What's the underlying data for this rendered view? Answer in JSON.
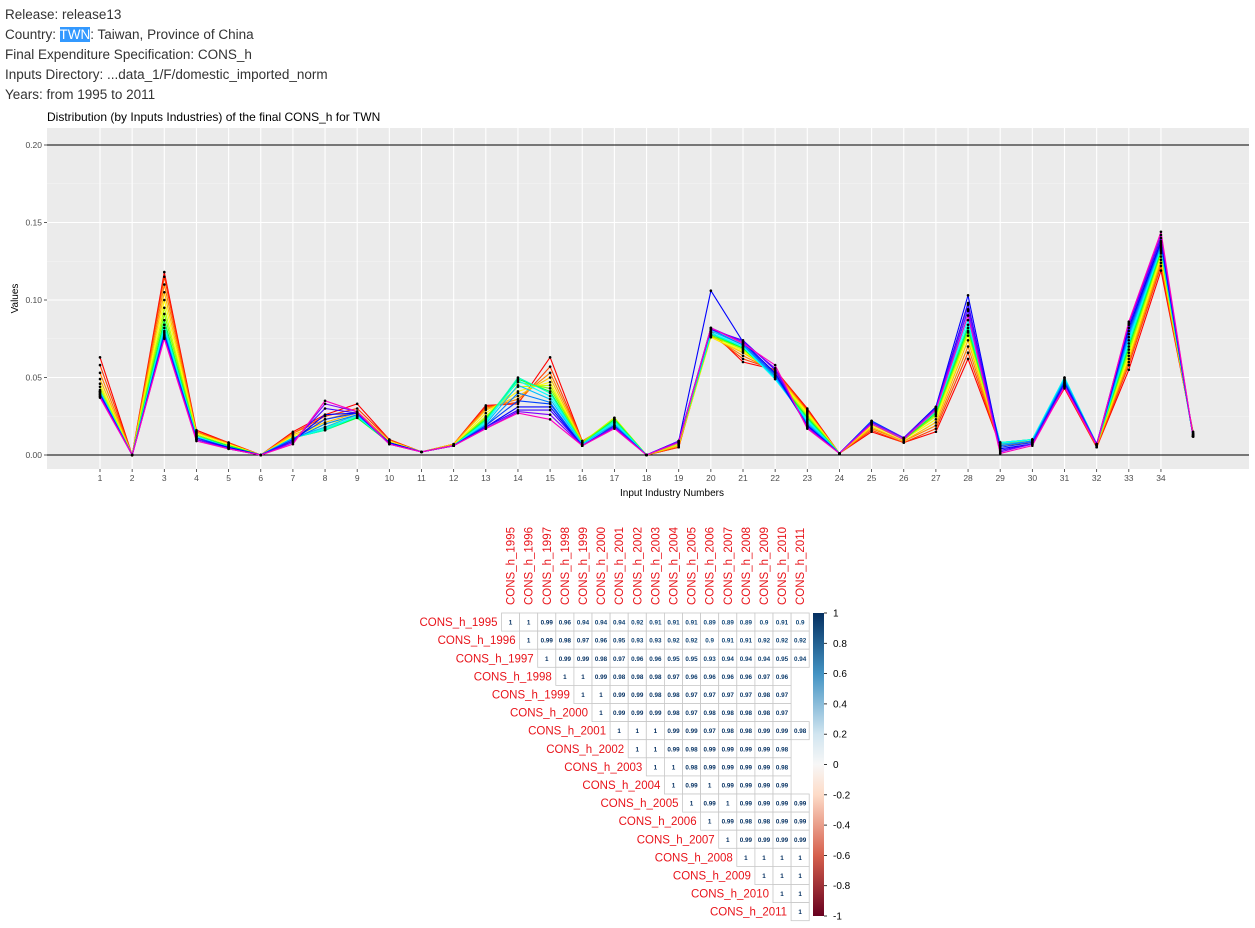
{
  "header": {
    "release_label": "Release: ",
    "release": "release13",
    "country_label": "Country: ",
    "country_code": "TWN",
    "country_name": ": Taiwan, Province of China",
    "spec_label": "Final Expenditure Specification: ",
    "spec": "CONS_h",
    "inputs_label": "Inputs Directory: ",
    "inputs_dir": "...data_1/F/domestic_imported_norm",
    "years_label": "Years: ",
    "years": "from 1995 to 2011"
  },
  "chart_data": [
    {
      "type": "line",
      "title": "Distribution (by Inputs Industries) of the final CONS_h for  TWN",
      "xlabel": "Input Industry Numbers",
      "ylabel": "Values",
      "ylim": [
        0,
        0.2
      ],
      "yticks": [
        "0.00",
        "0.05",
        "0.10",
        "0.15",
        "0.20"
      ],
      "xticks": [
        1,
        2,
        3,
        4,
        5,
        6,
        7,
        8,
        9,
        10,
        11,
        12,
        13,
        14,
        15,
        16,
        17,
        18,
        19,
        20,
        21,
        22,
        23,
        24,
        25,
        26,
        27,
        28,
        29,
        30,
        31,
        32,
        33,
        34
      ],
      "x": [
        1,
        2,
        3,
        4,
        5,
        6,
        7,
        8,
        9,
        10,
        11,
        12,
        13,
        14,
        15,
        16,
        17,
        18,
        19,
        20,
        21,
        22,
        23,
        24,
        25,
        26,
        27,
        28,
        29,
        30,
        31,
        32,
        33,
        34,
        35
      ],
      "grid": true,
      "series": [
        {
          "values": [
            0.063,
            0.0,
            0.118,
            0.016,
            0.008,
            0.0,
            0.015,
            0.026,
            0.033,
            0.01,
            0.002,
            0.007,
            0.032,
            0.033,
            0.063,
            0.009,
            0.019,
            0.0,
            0.005,
            0.08,
            0.06,
            0.055,
            0.03,
            0.001,
            0.015,
            0.008,
            0.015,
            0.062,
            0.006,
            0.008,
            0.043,
            0.005,
            0.055,
            0.119,
            0.015
          ],
          "color": "#ff0000"
        },
        {
          "values": [
            0.058,
            0.0,
            0.115,
            0.015,
            0.008,
            0.0,
            0.014,
            0.025,
            0.03,
            0.01,
            0.002,
            0.007,
            0.031,
            0.034,
            0.057,
            0.009,
            0.021,
            0.0,
            0.005,
            0.078,
            0.062,
            0.055,
            0.029,
            0.001,
            0.016,
            0.008,
            0.017,
            0.066,
            0.006,
            0.008,
            0.044,
            0.005,
            0.058,
            0.122,
            0.014
          ],
          "color": "#ff4000"
        },
        {
          "values": [
            0.053,
            0.0,
            0.11,
            0.015,
            0.007,
            0.0,
            0.014,
            0.023,
            0.028,
            0.009,
            0.002,
            0.007,
            0.03,
            0.036,
            0.053,
            0.009,
            0.022,
            0.0,
            0.006,
            0.077,
            0.064,
            0.054,
            0.028,
            0.001,
            0.017,
            0.009,
            0.019,
            0.07,
            0.006,
            0.009,
            0.044,
            0.006,
            0.06,
            0.124,
            0.014
          ],
          "color": "#ff8000"
        },
        {
          "values": [
            0.049,
            0.0,
            0.105,
            0.014,
            0.007,
            0.0,
            0.013,
            0.021,
            0.027,
            0.009,
            0.002,
            0.007,
            0.029,
            0.038,
            0.05,
            0.008,
            0.023,
            0.0,
            0.006,
            0.076,
            0.066,
            0.053,
            0.028,
            0.001,
            0.018,
            0.009,
            0.021,
            0.074,
            0.006,
            0.009,
            0.045,
            0.006,
            0.062,
            0.126,
            0.013
          ],
          "color": "#ffbf00"
        },
        {
          "values": [
            0.046,
            0.0,
            0.1,
            0.014,
            0.007,
            0.0,
            0.012,
            0.02,
            0.025,
            0.009,
            0.002,
            0.006,
            0.027,
            0.041,
            0.047,
            0.008,
            0.024,
            0.0,
            0.007,
            0.076,
            0.067,
            0.052,
            0.027,
            0.001,
            0.019,
            0.01,
            0.023,
            0.077,
            0.007,
            0.01,
            0.046,
            0.007,
            0.064,
            0.128,
            0.013
          ],
          "color": "#ffff00"
        },
        {
          "values": [
            0.044,
            0.0,
            0.095,
            0.013,
            0.006,
            0.0,
            0.011,
            0.018,
            0.024,
            0.008,
            0.002,
            0.006,
            0.025,
            0.044,
            0.045,
            0.008,
            0.024,
            0.0,
            0.007,
            0.077,
            0.068,
            0.051,
            0.026,
            0.001,
            0.02,
            0.01,
            0.025,
            0.079,
            0.007,
            0.01,
            0.047,
            0.007,
            0.066,
            0.13,
            0.013
          ],
          "color": "#bfff00"
        },
        {
          "values": [
            0.042,
            0.0,
            0.091,
            0.013,
            0.006,
            0.0,
            0.011,
            0.017,
            0.024,
            0.008,
            0.002,
            0.006,
            0.024,
            0.047,
            0.043,
            0.008,
            0.023,
            0.0,
            0.008,
            0.077,
            0.069,
            0.05,
            0.025,
            0.001,
            0.02,
            0.01,
            0.026,
            0.08,
            0.008,
            0.01,
            0.048,
            0.007,
            0.068,
            0.131,
            0.013
          ],
          "color": "#80ff00"
        },
        {
          "values": [
            0.041,
            0.0,
            0.087,
            0.012,
            0.006,
            0.0,
            0.011,
            0.016,
            0.024,
            0.008,
            0.002,
            0.006,
            0.023,
            0.049,
            0.041,
            0.007,
            0.023,
            0.0,
            0.008,
            0.078,
            0.069,
            0.05,
            0.024,
            0.001,
            0.02,
            0.01,
            0.027,
            0.082,
            0.008,
            0.01,
            0.049,
            0.007,
            0.07,
            0.132,
            0.012
          ],
          "color": "#00ff40"
        },
        {
          "values": [
            0.041,
            0.0,
            0.084,
            0.012,
            0.005,
            0.0,
            0.011,
            0.016,
            0.025,
            0.008,
            0.002,
            0.006,
            0.022,
            0.05,
            0.04,
            0.007,
            0.022,
            0.0,
            0.009,
            0.078,
            0.07,
            0.049,
            0.023,
            0.001,
            0.021,
            0.011,
            0.028,
            0.084,
            0.008,
            0.01,
            0.05,
            0.007,
            0.072,
            0.133,
            0.012
          ],
          "color": "#00ffbf"
        },
        {
          "values": [
            0.041,
            0.0,
            0.082,
            0.012,
            0.005,
            0.0,
            0.011,
            0.017,
            0.025,
            0.008,
            0.002,
            0.006,
            0.021,
            0.048,
            0.038,
            0.007,
            0.021,
            0.0,
            0.009,
            0.079,
            0.07,
            0.049,
            0.022,
            0.001,
            0.021,
            0.011,
            0.029,
            0.087,
            0.008,
            0.01,
            0.05,
            0.007,
            0.074,
            0.134,
            0.012
          ],
          "color": "#00ffff"
        },
        {
          "values": [
            0.04,
            0.0,
            0.08,
            0.011,
            0.005,
            0.0,
            0.011,
            0.018,
            0.026,
            0.008,
            0.002,
            0.006,
            0.02,
            0.045,
            0.036,
            0.007,
            0.02,
            0.0,
            0.009,
            0.08,
            0.071,
            0.05,
            0.021,
            0.001,
            0.022,
            0.011,
            0.03,
            0.09,
            0.007,
            0.009,
            0.049,
            0.007,
            0.076,
            0.135,
            0.012
          ],
          "color": "#00bfff"
        },
        {
          "values": [
            0.04,
            0.0,
            0.079,
            0.011,
            0.005,
            0.0,
            0.01,
            0.02,
            0.026,
            0.008,
            0.002,
            0.006,
            0.019,
            0.04,
            0.034,
            0.006,
            0.019,
            0.0,
            0.009,
            0.081,
            0.071,
            0.051,
            0.02,
            0.001,
            0.022,
            0.011,
            0.031,
            0.093,
            0.006,
            0.009,
            0.048,
            0.007,
            0.078,
            0.136,
            0.012
          ],
          "color": "#0080ff"
        },
        {
          "values": [
            0.039,
            0.0,
            0.078,
            0.011,
            0.005,
            0.0,
            0.01,
            0.023,
            0.027,
            0.008,
            0.002,
            0.006,
            0.019,
            0.035,
            0.033,
            0.006,
            0.019,
            0.0,
            0.009,
            0.082,
            0.072,
            0.052,
            0.019,
            0.001,
            0.022,
            0.011,
            0.031,
            0.097,
            0.005,
            0.008,
            0.047,
            0.007,
            0.08,
            0.137,
            0.012
          ],
          "color": "#0040ff"
        },
        {
          "values": [
            0.039,
            0.0,
            0.077,
            0.01,
            0.005,
            0.0,
            0.009,
            0.026,
            0.027,
            0.008,
            0.002,
            0.006,
            0.018,
            0.031,
            0.031,
            0.006,
            0.018,
            0.0,
            0.009,
            0.106,
            0.073,
            0.053,
            0.019,
            0.001,
            0.021,
            0.011,
            0.031,
            0.103,
            0.004,
            0.007,
            0.046,
            0.007,
            0.082,
            0.138,
            0.012
          ],
          "color": "#0000ff"
        },
        {
          "values": [
            0.038,
            0.0,
            0.076,
            0.01,
            0.004,
            0.0,
            0.009,
            0.03,
            0.027,
            0.007,
            0.002,
            0.006,
            0.018,
            0.029,
            0.029,
            0.006,
            0.018,
            0.0,
            0.009,
            0.081,
            0.074,
            0.055,
            0.018,
            0.001,
            0.021,
            0.011,
            0.03,
            0.098,
            0.003,
            0.007,
            0.045,
            0.007,
            0.084,
            0.14,
            0.012
          ],
          "color": "#4000ff"
        },
        {
          "values": [
            0.038,
            0.0,
            0.076,
            0.01,
            0.004,
            0.0,
            0.008,
            0.033,
            0.028,
            0.007,
            0.002,
            0.006,
            0.017,
            0.028,
            0.026,
            0.006,
            0.018,
            0.0,
            0.009,
            0.082,
            0.073,
            0.056,
            0.018,
            0.001,
            0.021,
            0.011,
            0.03,
            0.094,
            0.002,
            0.007,
            0.045,
            0.007,
            0.085,
            0.142,
            0.012
          ],
          "color": "#8000ff"
        },
        {
          "values": [
            0.037,
            0.0,
            0.075,
            0.009,
            0.004,
            0.0,
            0.007,
            0.035,
            0.028,
            0.007,
            0.002,
            0.006,
            0.017,
            0.027,
            0.023,
            0.006,
            0.017,
            0.0,
            0.008,
            0.082,
            0.072,
            0.058,
            0.017,
            0.001,
            0.02,
            0.01,
            0.029,
            0.09,
            0.001,
            0.006,
            0.044,
            0.006,
            0.086,
            0.144,
            0.012
          ],
          "color": "#ff00bf"
        }
      ]
    },
    {
      "type": "heatmap",
      "rows": [
        "CONS_h_1995",
        "CONS_h_1996",
        "CONS_h_1997",
        "CONS_h_1998",
        "CONS_h_1999",
        "CONS_h_2000",
        "CONS_h_2001",
        "CONS_h_2002",
        "CONS_h_2003",
        "CONS_h_2004",
        "CONS_h_2005",
        "CONS_h_2006",
        "CONS_h_2007",
        "CONS_h_2008",
        "CONS_h_2009",
        "CONS_h_2010",
        "CONS_h_2011"
      ],
      "columns": [
        "CONS_h_1995",
        "CONS_h_1996",
        "CONS_h_1997",
        "CONS_h_1998",
        "CONS_h_1999",
        "CONS_h_2000",
        "CONS_h_2001",
        "CONS_h_2002",
        "CONS_h_2003",
        "CONS_h_2004",
        "CONS_h_2005",
        "CONS_h_2006",
        "CONS_h_2007",
        "CONS_h_2008",
        "CONS_h_2009",
        "CONS_h_2010",
        "CONS_h_2011"
      ],
      "values": [
        [
          "1",
          "1",
          "0.99",
          "0.96",
          "0.94",
          "0.94",
          "0.94",
          "0.92",
          "0.91",
          "0.91",
          "0.91",
          "0.89",
          "0.89",
          "0.89",
          "0.9",
          "0.91",
          "0.9"
        ],
        [
          "1",
          "0.99",
          "0.98",
          "0.97",
          "0.96",
          "0.95",
          "0.93",
          "0.93",
          "0.92",
          "0.92",
          "0.9",
          "0.91",
          "0.91",
          "0.92",
          "0.92",
          "0.92"
        ],
        [
          "1",
          "0.99",
          "0.99",
          "0.98",
          "0.97",
          "0.96",
          "0.96",
          "0.95",
          "0.95",
          "0.93",
          "0.94",
          "0.94",
          "0.94",
          "0.95",
          "0.94"
        ],
        [
          "1",
          "1",
          "0.99",
          "0.98",
          "0.98",
          "0.98",
          "0.97",
          "0.96",
          "0.96",
          "0.96",
          "0.96",
          "0.97",
          "0.96"
        ],
        [
          "1",
          "1",
          "0.99",
          "0.99",
          "0.98",
          "0.98",
          "0.97",
          "0.97",
          "0.97",
          "0.97",
          "0.98",
          "0.97"
        ],
        [
          "1",
          "0.99",
          "0.99",
          "0.99",
          "0.98",
          "0.97",
          "0.98",
          "0.98",
          "0.98",
          "0.98",
          "0.97"
        ],
        [
          "1",
          "1",
          "1",
          "0.99",
          "0.99",
          "0.97",
          "0.98",
          "0.98",
          "0.99",
          "0.99",
          "0.98"
        ],
        [
          "1",
          "1",
          "0.99",
          "0.98",
          "0.99",
          "0.99",
          "0.99",
          "0.99",
          "0.98"
        ],
        [
          "1",
          "1",
          "0.98",
          "0.99",
          "0.99",
          "0.99",
          "0.99",
          "0.98"
        ],
        [
          "1",
          "0.99",
          "1",
          "0.99",
          "0.99",
          "0.99",
          "0.99"
        ],
        [
          "1",
          "0.99",
          "1",
          "0.99",
          "0.99",
          "0.99",
          "0.99"
        ],
        [
          "1",
          "0.99",
          "0.98",
          "0.98",
          "0.99",
          "0.99"
        ],
        [
          "1",
          "0.99",
          "0.99",
          "0.99",
          "0.99"
        ],
        [
          "1",
          "1",
          "1",
          "1"
        ],
        [
          "1",
          "1",
          "1"
        ],
        [
          "1",
          "1"
        ],
        [
          "1"
        ]
      ],
      "scale": {
        "min": -1,
        "max": 1,
        "ticks": [
          "-1",
          "-0.8",
          "-0.6",
          "-0.4",
          "-0.2",
          "0",
          "0.2",
          "0.4",
          "0.6",
          "0.8",
          "1"
        ]
      },
      "colors": {
        "negative": "#67001f",
        "neutral": "#f7f7f7",
        "positive": "#053061",
        "label": "#e8141b"
      }
    }
  ]
}
